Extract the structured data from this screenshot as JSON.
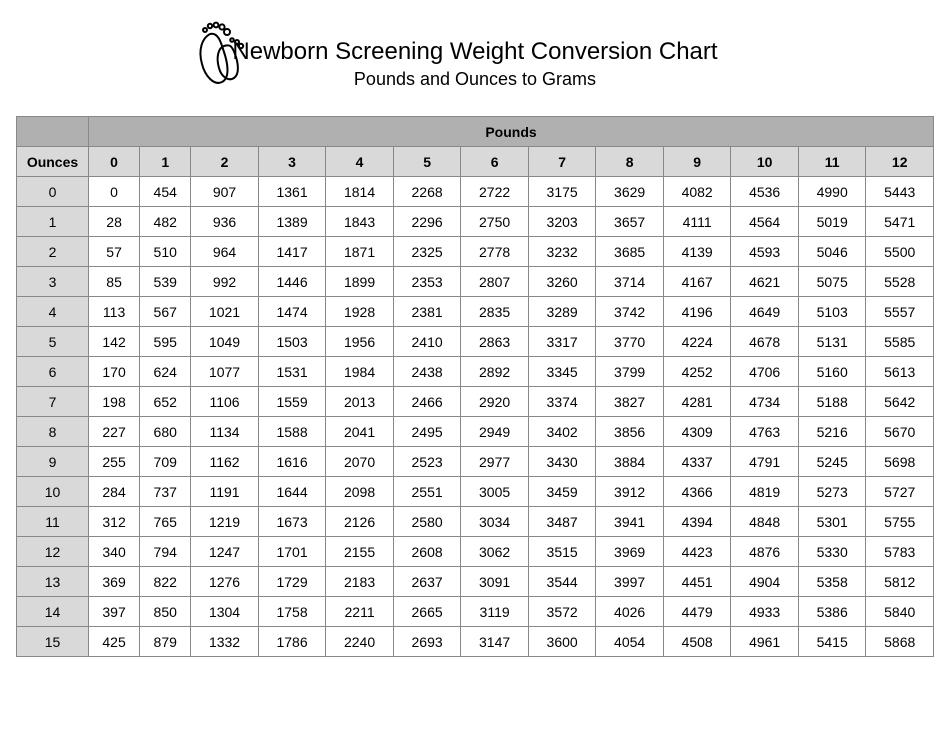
{
  "title": "Newborn Screening Weight Conversion Chart",
  "subtitle": "Pounds and Ounces to Grams",
  "icon_name": "baby-footprint-icon",
  "table": {
    "type": "table",
    "top_band_label": "Pounds",
    "row_axis_label": "Ounces",
    "pound_columns": [
      0,
      1,
      2,
      3,
      4,
      5,
      6,
      7,
      8,
      9,
      10,
      11,
      12
    ],
    "ounce_rows": [
      0,
      1,
      2,
      3,
      4,
      5,
      6,
      7,
      8,
      9,
      10,
      11,
      12,
      13,
      14,
      15
    ],
    "rows": [
      [
        0,
        454,
        907,
        1361,
        1814,
        2268,
        2722,
        3175,
        3629,
        4082,
        4536,
        4990,
        5443
      ],
      [
        28,
        482,
        936,
        1389,
        1843,
        2296,
        2750,
        3203,
        3657,
        4111,
        4564,
        5019,
        5471
      ],
      [
        57,
        510,
        964,
        1417,
        1871,
        2325,
        2778,
        3232,
        3685,
        4139,
        4593,
        5046,
        5500
      ],
      [
        85,
        539,
        992,
        1446,
        1899,
        2353,
        2807,
        3260,
        3714,
        4167,
        4621,
        5075,
        5528
      ],
      [
        113,
        567,
        1021,
        1474,
        1928,
        2381,
        2835,
        3289,
        3742,
        4196,
        4649,
        5103,
        5557
      ],
      [
        142,
        595,
        1049,
        1503,
        1956,
        2410,
        2863,
        3317,
        3770,
        4224,
        4678,
        5131,
        5585
      ],
      [
        170,
        624,
        1077,
        1531,
        1984,
        2438,
        2892,
        3345,
        3799,
        4252,
        4706,
        5160,
        5613
      ],
      [
        198,
        652,
        1106,
        1559,
        2013,
        2466,
        2920,
        3374,
        3827,
        4281,
        4734,
        5188,
        5642
      ],
      [
        227,
        680,
        1134,
        1588,
        2041,
        2495,
        2949,
        3402,
        3856,
        4309,
        4763,
        5216,
        5670
      ],
      [
        255,
        709,
        1162,
        1616,
        2070,
        2523,
        2977,
        3430,
        3884,
        4337,
        4791,
        5245,
        5698
      ],
      [
        284,
        737,
        1191,
        1644,
        2098,
        2551,
        3005,
        3459,
        3912,
        4366,
        4819,
        5273,
        5727
      ],
      [
        312,
        765,
        1219,
        1673,
        2126,
        2580,
        3034,
        3487,
        3941,
        4394,
        4848,
        5301,
        5755
      ],
      [
        340,
        794,
        1247,
        1701,
        2155,
        2608,
        3062,
        3515,
        3969,
        4423,
        4876,
        5330,
        5783
      ],
      [
        369,
        822,
        1276,
        1729,
        2183,
        2637,
        3091,
        3544,
        3997,
        4451,
        4904,
        5358,
        5812
      ],
      [
        397,
        850,
        1304,
        1758,
        2211,
        2665,
        3119,
        3572,
        4026,
        4479,
        4933,
        5386,
        5840
      ],
      [
        425,
        879,
        1332,
        1786,
        2240,
        2693,
        3147,
        3600,
        4054,
        4508,
        4961,
        5415,
        5868
      ]
    ],
    "colors": {
      "band_bg": "#b0b0b0",
      "header_bg": "#d9d9d9",
      "cell_bg": "#ffffff",
      "border": "#888888",
      "text": "#000000"
    },
    "font": {
      "header_family": "Comic Sans MS",
      "body_family": "Arial",
      "title_size_pt": 18,
      "subtitle_size_pt": 14,
      "cell_size_pt": 11
    }
  }
}
